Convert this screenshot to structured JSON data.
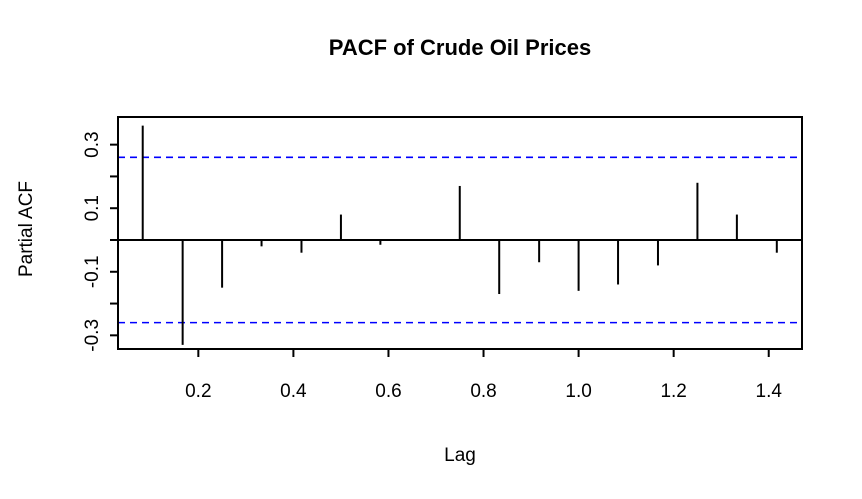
{
  "chart_data": {
    "type": "bar",
    "subtype": "pacf-stem-plot",
    "title": "PACF of Crude Oil Prices",
    "xlabel": "Lag",
    "ylabel": "Partial ACF",
    "x": [
      0.083,
      0.167,
      0.25,
      0.333,
      0.417,
      0.5,
      0.583,
      0.667,
      0.75,
      0.833,
      0.917,
      1.0,
      1.083,
      1.167,
      1.25,
      1.333,
      1.417
    ],
    "values": [
      0.36,
      -0.33,
      -0.15,
      -0.02,
      -0.04,
      0.08,
      -0.015,
      0.0,
      0.17,
      -0.17,
      -0.07,
      -0.16,
      -0.14,
      -0.08,
      0.18,
      0.08,
      -0.04
    ],
    "confidence_bands": {
      "upper": 0.26,
      "lower": -0.26,
      "line_style": "dashed",
      "color": "#0000ff"
    },
    "xlim": [
      0.031,
      1.47
    ],
    "ylim": [
      -0.343,
      0.387
    ],
    "x_ticks": {
      "values": [
        0.2,
        0.4,
        0.6,
        0.8,
        1.0,
        1.2,
        1.4
      ],
      "labels": [
        "0.2",
        "0.4",
        "0.6",
        "0.8",
        "1.0",
        "1.2",
        "1.4"
      ]
    },
    "y_ticks": {
      "values": [
        0.3,
        0.2,
        0.1,
        0.0,
        -0.1,
        -0.2,
        -0.3
      ],
      "labels": [
        "0.3",
        "",
        "0.1",
        "",
        "-0.1",
        "",
        "-0.3"
      ]
    },
    "zero_line": true,
    "grid": false,
    "legend": null,
    "spike_color": "#000000",
    "axis_color": "#000000",
    "background": "#ffffff"
  }
}
